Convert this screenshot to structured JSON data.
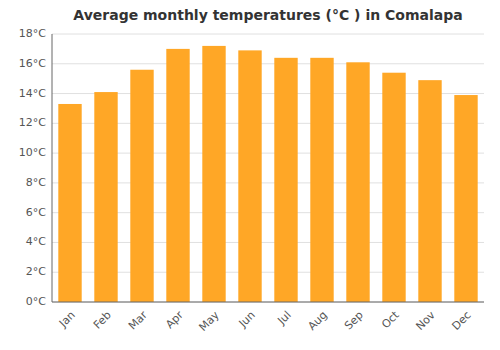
{
  "chart_data": {
    "type": "bar",
    "title": "Average monthly temperatures (°C ) in Comalapa",
    "categories": [
      "Jan",
      "Feb",
      "Mar",
      "Apr",
      "May",
      "Jun",
      "Jul",
      "Aug",
      "Sep",
      "Oct",
      "Nov",
      "Dec"
    ],
    "values": [
      13.3,
      14.1,
      15.6,
      17.0,
      17.2,
      16.9,
      16.4,
      16.4,
      16.1,
      15.4,
      14.9,
      13.9
    ],
    "color": "#FFA726",
    "ylim": [
      0,
      18
    ],
    "yticks": [
      {
        "value": 0,
        "label": "0°C"
      },
      {
        "value": 2,
        "label": "2°C"
      },
      {
        "value": 4,
        "label": "4°C"
      },
      {
        "value": 6,
        "label": "6°C"
      },
      {
        "value": 8,
        "label": "8°C"
      },
      {
        "value": 10,
        "label": "10°C"
      },
      {
        "value": 12,
        "label": "12°C"
      },
      {
        "value": 14,
        "label": "14°C"
      },
      {
        "value": 16,
        "label": "16°C"
      },
      {
        "value": 18,
        "label": "18°C"
      }
    ],
    "grid": true
  }
}
